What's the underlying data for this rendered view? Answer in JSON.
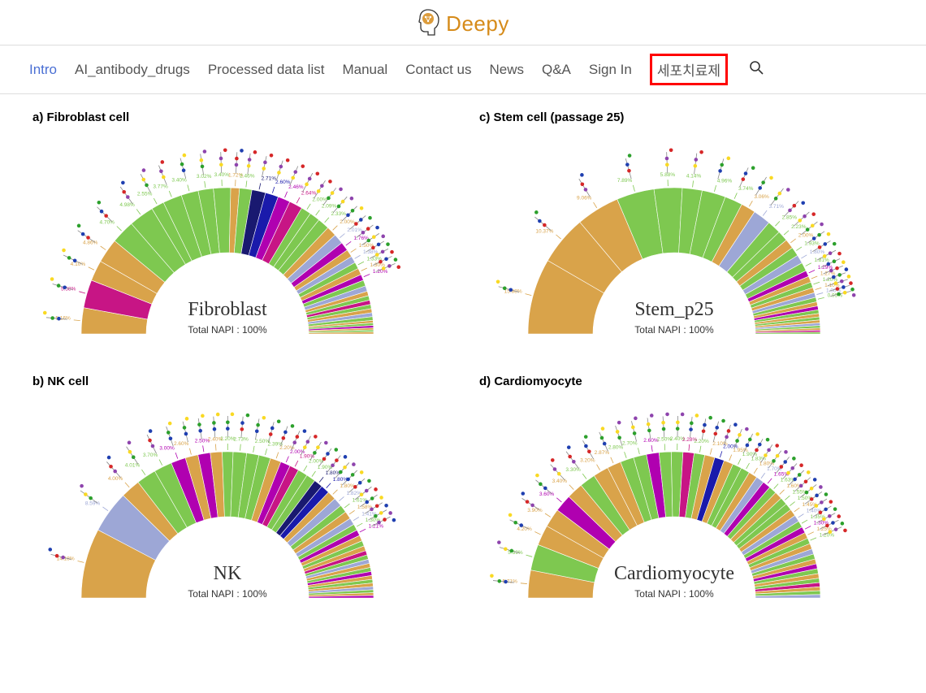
{
  "brand": {
    "name": "Deepy",
    "logo_color": "#d68b1a",
    "head_stroke": "#333333"
  },
  "nav": {
    "items": [
      {
        "label": "Intro",
        "active": true
      },
      {
        "label": "AI_antibody_drugs"
      },
      {
        "label": "Processed data list"
      },
      {
        "label": "Manual"
      },
      {
        "label": "Contact us"
      },
      {
        "label": "News"
      },
      {
        "label": "Q&A"
      },
      {
        "label": "Sign In"
      },
      {
        "label": "세포치료제",
        "highlight_box": true
      }
    ],
    "highlight_box_color": "#ff0000"
  },
  "charts": {
    "type": "semi-donut",
    "inner_radius": 100,
    "outer_radius": 180,
    "center_sub_label": "Total NAPI : 100%",
    "glycan_marker_colors": {
      "mannose": "#2ca02c",
      "galactose": "#f9d923",
      "glcnac": "#1f3fb0",
      "fucose": "#d62728",
      "sialic": "#8e44ad"
    },
    "panels": [
      {
        "id": "a",
        "title": "a) Fibroblast cell",
        "center_name": "Fibroblast",
        "segments": [
          {
            "pct": 5.16,
            "color": "#d9a34a"
          },
          {
            "pct": 5.58,
            "color": "#c71585"
          },
          {
            "pct": 4.1,
            "color": "#d9a34a"
          },
          {
            "pct": 4.86,
            "color": "#d9a34a"
          },
          {
            "pct": 4.7,
            "color": "#7ec850"
          },
          {
            "pct": 4.98,
            "color": "#7ec850"
          },
          {
            "pct": 2.55,
            "color": "#7ec850"
          },
          {
            "pct": 3.77,
            "color": "#7ec850"
          },
          {
            "pct": 3.4,
            "color": "#7ec850"
          },
          {
            "pct": 3.02,
            "color": "#7ec850"
          },
          {
            "pct": 3.4,
            "color": "#7ec850"
          },
          {
            "pct": 1.72,
            "color": "#d9a34a"
          },
          {
            "pct": 2.46,
            "color": "#7ec850"
          },
          {
            "pct": 2.71,
            "color": "#191970"
          },
          {
            "pct": 2.6,
            "color": "#1a1aab"
          },
          {
            "pct": 2.46,
            "color": "#b000b0"
          },
          {
            "pct": 2.64,
            "color": "#c71585"
          },
          {
            "pct": 2.0,
            "color": "#7ec850"
          },
          {
            "pct": 2.09,
            "color": "#7ec850"
          },
          {
            "pct": 2.33,
            "color": "#7ec850"
          },
          {
            "pct": 2.0,
            "color": "#d9a34a"
          },
          {
            "pct": 2.01,
            "color": "#9da7d6"
          },
          {
            "pct": 1.76,
            "color": "#b000b0"
          },
          {
            "pct": 1.5,
            "color": "#d9a34a"
          },
          {
            "pct": 1.38,
            "color": "#9da7d6"
          },
          {
            "pct": 1.33,
            "color": "#7ec850"
          },
          {
            "pct": 1.3,
            "color": "#d9a34a"
          },
          {
            "pct": 1.2,
            "color": "#b000b0"
          },
          {
            "pct": 1.18,
            "color": "#7ec850"
          },
          {
            "pct": 1.1,
            "color": "#9da7d6"
          },
          {
            "pct": 0.9,
            "color": "#d9a34a"
          },
          {
            "pct": 0.9,
            "color": "#7ec850"
          },
          {
            "pct": 0.85,
            "color": "#c71585"
          },
          {
            "pct": 0.85,
            "color": "#7ec850"
          },
          {
            "pct": 0.8,
            "color": "#d9a34a"
          },
          {
            "pct": 0.77,
            "color": "#9da7d6"
          },
          {
            "pct": 0.73,
            "color": "#7ec850"
          },
          {
            "pct": 0.5,
            "color": "#d9a34a"
          },
          {
            "pct": 0.5,
            "color": "#7ec850"
          },
          {
            "pct": 0.48,
            "color": "#b000b0"
          },
          {
            "pct": 0.4,
            "color": "#d9a34a"
          },
          {
            "pct": 0.39,
            "color": "#7ec850"
          },
          {
            "pct": 0.39,
            "color": "#d9a34a"
          }
        ]
      },
      {
        "id": "b",
        "title": "b) NK cell",
        "center_name": "NK",
        "segments": [
          {
            "pct": 14.18,
            "color": "#d9a34a"
          },
          {
            "pct": 8.59,
            "color": "#9da7d6"
          },
          {
            "pct": 4.0,
            "color": "#d9a34a"
          },
          {
            "pct": 4.01,
            "color": "#7ec850"
          },
          {
            "pct": 3.7,
            "color": "#7ec850"
          },
          {
            "pct": 3.0,
            "color": "#b000b0"
          },
          {
            "pct": 2.6,
            "color": "#d9a34a"
          },
          {
            "pct": 2.5,
            "color": "#b000b0"
          },
          {
            "pct": 2.4,
            "color": "#d9a34a"
          },
          {
            "pct": 2.2,
            "color": "#7ec850"
          },
          {
            "pct": 2.73,
            "color": "#7ec850"
          },
          {
            "pct": 2.5,
            "color": "#7ec850"
          },
          {
            "pct": 2.39,
            "color": "#7ec850"
          },
          {
            "pct": 2.2,
            "color": "#d9a34a"
          },
          {
            "pct": 2.0,
            "color": "#b000b0"
          },
          {
            "pct": 1.9,
            "color": "#c71585"
          },
          {
            "pct": 2.0,
            "color": "#7ec850"
          },
          {
            "pct": 1.9,
            "color": "#7ec850"
          },
          {
            "pct": 1.8,
            "color": "#191970"
          },
          {
            "pct": 1.8,
            "color": "#1a1aab"
          },
          {
            "pct": 1.8,
            "color": "#d9a34a"
          },
          {
            "pct": 1.82,
            "color": "#9da7d6"
          },
          {
            "pct": 1.61,
            "color": "#7ec850"
          },
          {
            "pct": 1.58,
            "color": "#d9a34a"
          },
          {
            "pct": 1.41,
            "color": "#9da7d6"
          },
          {
            "pct": 1.3,
            "color": "#7ec850"
          },
          {
            "pct": 1.21,
            "color": "#b000b0"
          },
          {
            "pct": 1.18,
            "color": "#d9a34a"
          },
          {
            "pct": 1.1,
            "color": "#7ec850"
          },
          {
            "pct": 1.0,
            "color": "#d9a34a"
          },
          {
            "pct": 0.9,
            "color": "#c71585"
          },
          {
            "pct": 0.9,
            "color": "#7ec850"
          },
          {
            "pct": 0.85,
            "color": "#9da7d6"
          },
          {
            "pct": 0.85,
            "color": "#d9a34a"
          },
          {
            "pct": 0.82,
            "color": "#7ec850"
          },
          {
            "pct": 0.81,
            "color": "#b000b0"
          },
          {
            "pct": 0.78,
            "color": "#d9a34a"
          },
          {
            "pct": 0.75,
            "color": "#7ec850"
          },
          {
            "pct": 0.7,
            "color": "#d9a34a"
          },
          {
            "pct": 0.65,
            "color": "#9da7d6"
          },
          {
            "pct": 0.6,
            "color": "#7ec850"
          },
          {
            "pct": 0.55,
            "color": "#d9a34a"
          },
          {
            "pct": 0.5,
            "color": "#b000b0"
          }
        ]
      },
      {
        "id": "c",
        "title": "c) Stem cell (passage 25)",
        "center_name": "Stem_p25",
        "segments": [
          {
            "pct": 15.88,
            "color": "#d9a34a"
          },
          {
            "pct": 10.37,
            "color": "#d9a34a"
          },
          {
            "pct": 9.06,
            "color": "#d9a34a"
          },
          {
            "pct": 7.89,
            "color": "#7ec850"
          },
          {
            "pct": 5.88,
            "color": "#7ec850"
          },
          {
            "pct": 4.14,
            "color": "#7ec850"
          },
          {
            "pct": 4.96,
            "color": "#7ec850"
          },
          {
            "pct": 3.74,
            "color": "#7ec850"
          },
          {
            "pct": 3.06,
            "color": "#d9a34a"
          },
          {
            "pct": 3.71,
            "color": "#9da7d6"
          },
          {
            "pct": 2.85,
            "color": "#7ec850"
          },
          {
            "pct": 2.23,
            "color": "#7ec850"
          },
          {
            "pct": 2.0,
            "color": "#d9a34a"
          },
          {
            "pct": 1.93,
            "color": "#7ec850"
          },
          {
            "pct": 1.8,
            "color": "#9da7d6"
          },
          {
            "pct": 1.81,
            "color": "#7ec850"
          },
          {
            "pct": 1.29,
            "color": "#b000b0"
          },
          {
            "pct": 1.27,
            "color": "#d9a34a"
          },
          {
            "pct": 1.2,
            "color": "#7ec850"
          },
          {
            "pct": 1.1,
            "color": "#d9a34a"
          },
          {
            "pct": 1.0,
            "color": "#9da7d6"
          },
          {
            "pct": 0.95,
            "color": "#7ec850"
          },
          {
            "pct": 0.87,
            "color": "#d9a34a"
          },
          {
            "pct": 0.8,
            "color": "#b000b0"
          },
          {
            "pct": 0.78,
            "color": "#7ec850"
          },
          {
            "pct": 0.7,
            "color": "#d9a34a"
          },
          {
            "pct": 0.65,
            "color": "#7ec850"
          },
          {
            "pct": 0.6,
            "color": "#d9a34a"
          },
          {
            "pct": 0.55,
            "color": "#9da7d6"
          },
          {
            "pct": 0.5,
            "color": "#7ec850"
          },
          {
            "pct": 0.45,
            "color": "#d9a34a"
          },
          {
            "pct": 0.4,
            "color": "#c71585"
          },
          {
            "pct": 0.38,
            "color": "#7ec850"
          }
        ]
      },
      {
        "id": "d",
        "title": "d) Cardiomyocyte",
        "center_name": "Cardiomyocyte",
        "segments": [
          {
            "pct": 5.71,
            "color": "#d9a34a"
          },
          {
            "pct": 5.39,
            "color": "#7ec850"
          },
          {
            "pct": 4.2,
            "color": "#d9a34a"
          },
          {
            "pct": 3.9,
            "color": "#d9a34a"
          },
          {
            "pct": 3.6,
            "color": "#b000b0"
          },
          {
            "pct": 3.4,
            "color": "#d9a34a"
          },
          {
            "pct": 3.3,
            "color": "#7ec850"
          },
          {
            "pct": 3.2,
            "color": "#d9a34a"
          },
          {
            "pct": 2.87,
            "color": "#d9a34a"
          },
          {
            "pct": 2.8,
            "color": "#7ec850"
          },
          {
            "pct": 2.7,
            "color": "#7ec850"
          },
          {
            "pct": 2.6,
            "color": "#b000b0"
          },
          {
            "pct": 2.5,
            "color": "#7ec850"
          },
          {
            "pct": 2.4,
            "color": "#7ec850"
          },
          {
            "pct": 2.28,
            "color": "#c71585"
          },
          {
            "pct": 2.2,
            "color": "#7ec850"
          },
          {
            "pct": 2.1,
            "color": "#d9a34a"
          },
          {
            "pct": 2.0,
            "color": "#1a1aab"
          },
          {
            "pct": 1.95,
            "color": "#d9a34a"
          },
          {
            "pct": 1.9,
            "color": "#7ec850"
          },
          {
            "pct": 1.83,
            "color": "#7ec850"
          },
          {
            "pct": 1.8,
            "color": "#d9a34a"
          },
          {
            "pct": 1.7,
            "color": "#9da7d6"
          },
          {
            "pct": 1.65,
            "color": "#b000b0"
          },
          {
            "pct": 1.63,
            "color": "#7ec850"
          },
          {
            "pct": 1.6,
            "color": "#d9a34a"
          },
          {
            "pct": 1.55,
            "color": "#7ec850"
          },
          {
            "pct": 1.5,
            "color": "#7ec850"
          },
          {
            "pct": 1.45,
            "color": "#d9a34a"
          },
          {
            "pct": 1.4,
            "color": "#9da7d6"
          },
          {
            "pct": 1.35,
            "color": "#7ec850"
          },
          {
            "pct": 1.3,
            "color": "#b000b0"
          },
          {
            "pct": 1.25,
            "color": "#d9a34a"
          },
          {
            "pct": 1.2,
            "color": "#7ec850"
          },
          {
            "pct": 1.15,
            "color": "#d9a34a"
          },
          {
            "pct": 1.09,
            "color": "#9da7d6"
          },
          {
            "pct": 1.05,
            "color": "#7ec850"
          },
          {
            "pct": 1.03,
            "color": "#d9a34a"
          },
          {
            "pct": 1.0,
            "color": "#b000b0"
          },
          {
            "pct": 1.02,
            "color": "#7ec850"
          },
          {
            "pct": 0.95,
            "color": "#d9a34a"
          },
          {
            "pct": 0.9,
            "color": "#7ec850"
          },
          {
            "pct": 0.86,
            "color": "#c71585"
          },
          {
            "pct": 0.8,
            "color": "#d9a34a"
          },
          {
            "pct": 0.78,
            "color": "#7ec850"
          },
          {
            "pct": 0.7,
            "color": "#9da7d6"
          }
        ]
      }
    ]
  }
}
